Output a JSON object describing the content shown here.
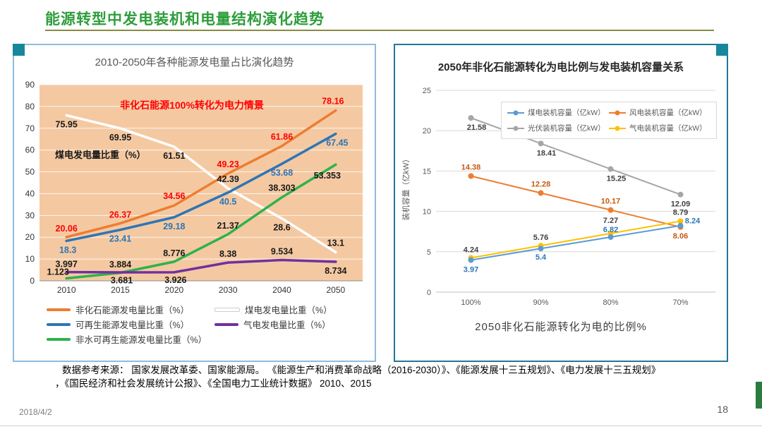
{
  "slide": {
    "title": "能源转型中发电装机和电量结构演化趋势",
    "date": "2018/4/2",
    "page_number": "18",
    "title_color": "#2E9D3C",
    "accent_color": "#2B7C3F"
  },
  "source": {
    "line1": "数据参考来源：  国家发展改革委、国家能源局。  《能源生产和消费革命战略（2016-2030）》、《能源发展十三五规划》、《电力发展十三五规划》",
    "line2": "，《国民经济和社会发展统计公报》、《全国电力工业统计数据》  2010、2015"
  },
  "chart_data": [
    {
      "type": "line",
      "title": "2010-2050年各种能源发电量占比演化趋势",
      "categories": [
        "2010",
        "2015",
        "2020",
        "2030",
        "2040",
        "2050"
      ],
      "ylim": [
        0,
        90
      ],
      "ytick_step": 10,
      "plot_bg": "#F4C9A2",
      "grid": "on",
      "legend_position": "bottom",
      "annotations": [
        "非化石能源100%转化为电力情景",
        "煤电发电量比重（%）"
      ],
      "series": [
        {
          "name": "非化石能源发电量比重（%）",
          "color": "#ED7D31",
          "label_color": "#FF0000",
          "values": [
            20.06,
            26.37,
            34.56,
            49.23,
            61.86,
            78.16
          ]
        },
        {
          "name": "可再生能源发电量比重（%）",
          "color": "#2E75B6",
          "label_color": "#2E75B6",
          "values": [
            18.3,
            23.41,
            29.18,
            40.5,
            53.68,
            67.45
          ]
        },
        {
          "name": "非水可再生能源发电量比重（%）",
          "color": "#2DB34A",
          "label_color": "#1a1a1a",
          "values": [
            1.123,
            3.681,
            8.776,
            21.37,
            38.303,
            53.353
          ]
        },
        {
          "name": "煤电发电量比重（%）",
          "color": "#FFFFFF",
          "label_color": "#1a1a1a",
          "values": [
            75.95,
            69.95,
            61.51,
            42.39,
            28.6,
            13.1
          ]
        },
        {
          "name": "气电发电量比重（%）",
          "color": "#7030A0",
          "label_color": "#1a1a1a",
          "values": [
            3.997,
            3.884,
            3.926,
            8.38,
            9.534,
            8.734
          ]
        }
      ]
    },
    {
      "type": "line",
      "title": "2050年非化石能源转化为电比例与发电装机容量关系",
      "categories": [
        "100%",
        "90%",
        "80%",
        "70%"
      ],
      "ylim": [
        0,
        25
      ],
      "ytick_step": 5,
      "ylabel": "装机容量（亿kW）",
      "xlabel": "2050非化石能源转化为电的比例%",
      "grid": "on",
      "legend_position": "top-right-box",
      "series": [
        {
          "name": "煤电装机容量（亿kW）",
          "color": "#5B9BD5",
          "label_color": "#2E75B6",
          "values": [
            3.97,
            5.4,
            6.82,
            8.24
          ]
        },
        {
          "name": "风电装机容量（亿kW）",
          "color": "#ED7D31",
          "label_color": "#C55A11",
          "values": [
            14.38,
            12.28,
            10.17,
            8.06
          ]
        },
        {
          "name": "光伏装机容量（亿kW）",
          "color": "#A6A6A6",
          "label_color": "#404040",
          "values": [
            21.58,
            18.41,
            15.25,
            12.09
          ]
        },
        {
          "name": "气电装机容量（亿kW）",
          "color": "#FFC000",
          "label_color": "#404040",
          "values": [
            4.24,
            5.76,
            7.27,
            8.79
          ]
        }
      ]
    }
  ]
}
